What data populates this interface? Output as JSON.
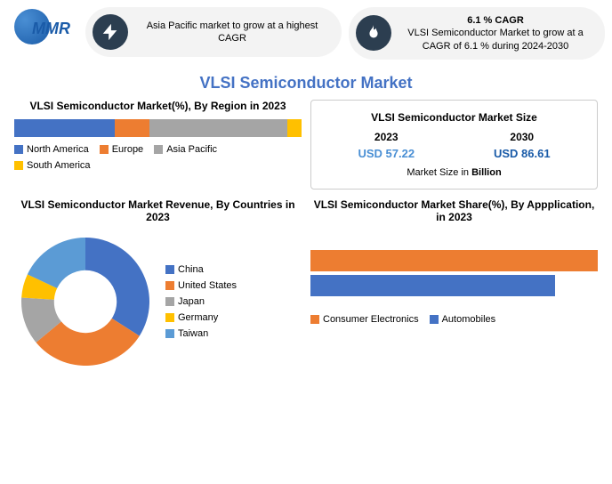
{
  "logo": {
    "text": "MMR"
  },
  "info1": {
    "text": "Asia Pacific market to grow at a highest CAGR"
  },
  "info2": {
    "highlight": "6.1 % CAGR",
    "text": "VLSI Semiconductor Market to grow at a CAGR of 6.1 % during 2024-2030"
  },
  "main_title": "VLSI Semiconductor Market",
  "region": {
    "title": "VLSI Semiconductor Market(%), By Region in 2023",
    "type": "stacked-bar",
    "segments": [
      {
        "label": "North America",
        "value": 35,
        "color": "#4472c4"
      },
      {
        "label": "Europe",
        "value": 12,
        "color": "#ed7d31"
      },
      {
        "label": "Asia Pacific",
        "value": 48,
        "color": "#a5a5a5"
      },
      {
        "label": "South America",
        "value": 5,
        "color": "#ffc000"
      }
    ]
  },
  "size": {
    "title": "VLSI Semiconductor Market Size",
    "year1": "2023",
    "val1": "USD 57.22",
    "val1_color": "#4a8fd4",
    "year2": "2030",
    "val2": "USD 86.61",
    "val2_color": "#1a5ba8",
    "note_prefix": "Market Size in ",
    "note_bold": "Billion"
  },
  "countries": {
    "title": "VLSI Semiconductor Market Revenue, By Countries in 2023",
    "type": "donut",
    "segments": [
      {
        "label": "China",
        "value": 34,
        "color": "#4472c4"
      },
      {
        "label": "United States",
        "value": 30,
        "color": "#ed7d31"
      },
      {
        "label": "Japan",
        "value": 12,
        "color": "#a5a5a5"
      },
      {
        "label": "Germany",
        "value": 6,
        "color": "#ffc000"
      },
      {
        "label": "Taiwan",
        "value": 18,
        "color": "#5b9bd5"
      }
    ]
  },
  "application": {
    "title": "VLSI Semiconductor Market Share(%), By Appplication, in 2023",
    "type": "hbar",
    "bars": [
      {
        "label": "Consumer Electronics",
        "value": 100,
        "color": "#ed7d31"
      },
      {
        "label": "Automobiles",
        "value": 85,
        "color": "#4472c4"
      }
    ]
  },
  "colors": {
    "title": "#4472c4",
    "info_icon_bg": "#2c3e50"
  }
}
